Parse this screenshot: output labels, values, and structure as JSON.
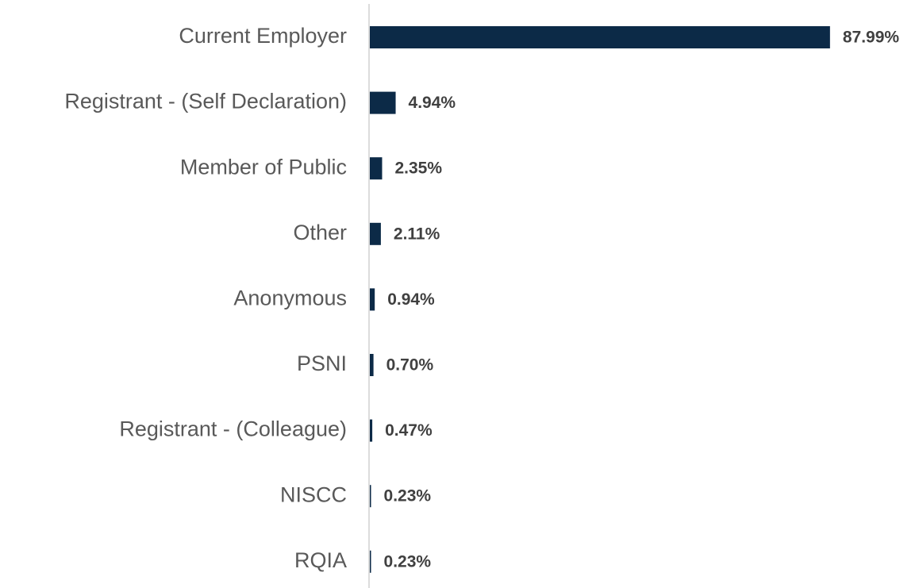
{
  "chart_data": {
    "type": "bar",
    "orientation": "horizontal",
    "categories": [
      "Current Employer",
      "Registrant - (Self Declaration)",
      "Member of Public",
      "Other",
      "Anonymous",
      "PSNI",
      "Registrant - (Colleague)",
      "NISCC",
      "RQIA"
    ],
    "values": [
      87.99,
      4.94,
      2.35,
      2.11,
      0.94,
      0.7,
      0.47,
      0.23,
      0.23
    ],
    "value_labels": [
      "87.99%",
      "4.94%",
      "2.35%",
      "2.11%",
      "0.94%",
      "0.70%",
      "0.47%",
      "0.23%",
      "0.23%"
    ],
    "color": "#0c2a47"
  }
}
